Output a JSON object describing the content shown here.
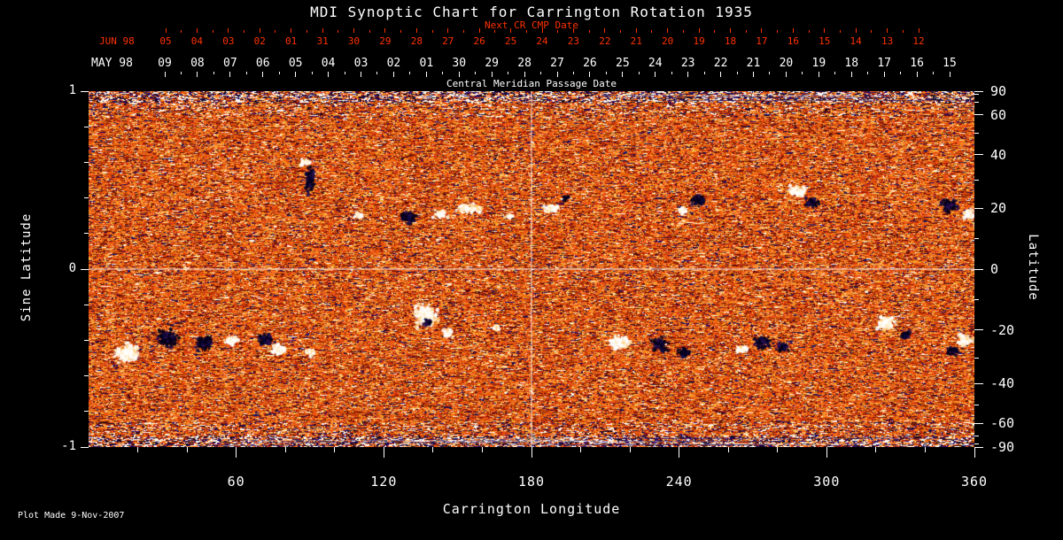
{
  "figure": {
    "footer": "Plot Made  9-Nov-2007",
    "colors": {
      "background": "#000000",
      "text": "#ffffff",
      "accent_red": "#ff3200"
    }
  },
  "chart_data": {
    "type": "heatmap",
    "title": "MDI Synoptic Chart for Carrington Rotation 1935",
    "xlabel": "Carrington Longitude",
    "ylabel_left": "Sine Latitude",
    "ylabel_right": "Latitude",
    "xlim": [
      0,
      360
    ],
    "ylim_sine_latitude": [
      -1,
      1
    ],
    "x_ticks": [
      60,
      120,
      180,
      240,
      300,
      360
    ],
    "left_ticks": [
      1,
      0,
      -1
    ],
    "right_ticks_latitude": [
      90,
      60,
      40,
      20,
      0,
      -20,
      -40,
      -60,
      -90
    ],
    "top_axis_next_cr": {
      "label": "Next CR CMP Date",
      "month_label": "JUN 98",
      "day_ticks": [
        "05",
        "04",
        "03",
        "02",
        "01",
        "31",
        "30",
        "29",
        "28",
        "27",
        "26",
        "25",
        "24",
        "23",
        "22",
        "21",
        "20",
        "19",
        "18",
        "17",
        "16",
        "15",
        "14",
        "13",
        "12"
      ]
    },
    "top_axis_cmp": {
      "label": "Central Meridian Passage Date",
      "month_label": "MAY 98",
      "day_ticks": [
        "09",
        "08",
        "07",
        "06",
        "05",
        "04",
        "03",
        "02",
        "01",
        "30",
        "29",
        "28",
        "27",
        "26",
        "25",
        "24",
        "23",
        "22",
        "21",
        "20",
        "19",
        "18",
        "17",
        "16",
        "15"
      ]
    },
    "crosshair": {
      "longitude": 180,
      "sine_latitude": 0
    },
    "colormap_note": "solar magnetogram: orange/red noise background, white = positive magnetic field, dark = negative magnetic field",
    "active_regions": [
      {
        "lon": 90,
        "slat": 0.5,
        "pol": "-",
        "sx": 5,
        "sy": 13,
        "n": 130
      },
      {
        "lon": 88,
        "slat": 0.6,
        "pol": "+",
        "sx": 5,
        "sy": 4,
        "n": 45
      },
      {
        "lon": 110,
        "slat": 0.3,
        "pol": "+",
        "sx": 5,
        "sy": 3,
        "n": 28
      },
      {
        "lon": 130,
        "slat": 0.29,
        "pol": "-",
        "sx": 8,
        "sy": 6,
        "n": 95
      },
      {
        "lon": 143,
        "slat": 0.31,
        "pol": "+",
        "sx": 7,
        "sy": 4,
        "n": 55
      },
      {
        "lon": 155,
        "slat": 0.34,
        "pol": "+",
        "sx": 13,
        "sy": 5,
        "n": 120
      },
      {
        "lon": 171,
        "slat": 0.3,
        "pol": "+",
        "sx": 4,
        "sy": 3,
        "n": 22
      },
      {
        "lon": 188,
        "slat": 0.34,
        "pol": "+",
        "sx": 9,
        "sy": 5,
        "n": 65
      },
      {
        "lon": 194,
        "slat": 0.4,
        "pol": "-",
        "sx": 4,
        "sy": 3,
        "n": 22
      },
      {
        "lon": 248,
        "slat": 0.39,
        "pol": "-",
        "sx": 8,
        "sy": 6,
        "n": 80
      },
      {
        "lon": 241,
        "slat": 0.33,
        "pol": "+",
        "sx": 5,
        "sy": 4,
        "n": 28
      },
      {
        "lon": 288,
        "slat": 0.44,
        "pol": "+",
        "sx": 10,
        "sy": 6,
        "n": 95
      },
      {
        "lon": 294,
        "slat": 0.37,
        "pol": "-",
        "sx": 7,
        "sy": 5,
        "n": 65
      },
      {
        "lon": 350,
        "slat": 0.36,
        "pol": "-",
        "sx": 9,
        "sy": 7,
        "n": 105
      },
      {
        "lon": 358,
        "slat": 0.31,
        "pol": "+",
        "sx": 6,
        "sy": 5,
        "n": 55
      },
      {
        "lon": 16,
        "slat": -0.47,
        "pol": "+",
        "sx": 13,
        "sy": 10,
        "n": 210
      },
      {
        "lon": 32,
        "slat": -0.39,
        "pol": "-",
        "sx": 11,
        "sy": 9,
        "n": 160
      },
      {
        "lon": 47,
        "slat": -0.42,
        "pol": "-",
        "sx": 9,
        "sy": 8,
        "n": 125
      },
      {
        "lon": 58,
        "slat": -0.4,
        "pol": "+",
        "sx": 7,
        "sy": 5,
        "n": 60
      },
      {
        "lon": 72,
        "slat": -0.4,
        "pol": "-",
        "sx": 8,
        "sy": 6,
        "n": 85
      },
      {
        "lon": 77,
        "slat": -0.45,
        "pol": "+",
        "sx": 8,
        "sy": 5,
        "n": 70
      },
      {
        "lon": 90,
        "slat": -0.47,
        "pol": "+",
        "sx": 5,
        "sy": 4,
        "n": 40
      },
      {
        "lon": 137,
        "slat": -0.26,
        "pol": "+",
        "sx": 12,
        "sy": 11,
        "n": 270
      },
      {
        "lon": 138,
        "slat": -0.3,
        "pol": "-",
        "sx": 4,
        "sy": 4,
        "n": 40
      },
      {
        "lon": 146,
        "slat": -0.36,
        "pol": "+",
        "sx": 6,
        "sy": 5,
        "n": 50
      },
      {
        "lon": 166,
        "slat": -0.33,
        "pol": "+",
        "sx": 4,
        "sy": 3,
        "n": 25
      },
      {
        "lon": 216,
        "slat": -0.41,
        "pol": "+",
        "sx": 11,
        "sy": 7,
        "n": 140
      },
      {
        "lon": 232,
        "slat": -0.42,
        "pol": "-",
        "sx": 9,
        "sy": 7,
        "n": 115
      },
      {
        "lon": 242,
        "slat": -0.47,
        "pol": "-",
        "sx": 7,
        "sy": 5,
        "n": 65
      },
      {
        "lon": 274,
        "slat": -0.41,
        "pol": "-",
        "sx": 9,
        "sy": 7,
        "n": 95
      },
      {
        "lon": 266,
        "slat": -0.45,
        "pol": "+",
        "sx": 6,
        "sy": 4,
        "n": 50
      },
      {
        "lon": 282,
        "slat": -0.44,
        "pol": "-",
        "sx": 6,
        "sy": 5,
        "n": 55
      },
      {
        "lon": 324,
        "slat": -0.3,
        "pol": "+",
        "sx": 10,
        "sy": 7,
        "n": 115
      },
      {
        "lon": 332,
        "slat": -0.37,
        "pol": "-",
        "sx": 5,
        "sy": 4,
        "n": 45
      },
      {
        "lon": 356,
        "slat": -0.4,
        "pol": "+",
        "sx": 8,
        "sy": 6,
        "n": 85
      },
      {
        "lon": 351,
        "slat": -0.46,
        "pol": "-",
        "sx": 6,
        "sy": 5,
        "n": 58
      }
    ]
  }
}
